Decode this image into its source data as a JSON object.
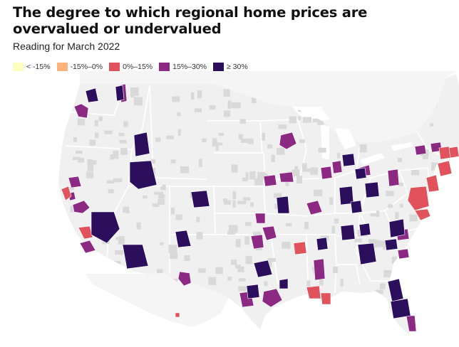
{
  "title": "The degree to which regional home prices are overvalued or undervalued",
  "subtitle": "Reading for March 2022",
  "legend": [
    {
      "label": "< -15%",
      "color": "#fcfdbf"
    },
    {
      "label": "-15%–0%",
      "color": "#fdb27c"
    },
    {
      "label": "0%–15%",
      "color": "#e2525c"
    },
    {
      "label": "15%–30%",
      "color": "#8c2982"
    },
    {
      "label": "≥ 30%",
      "color": "#2b0f5c"
    }
  ],
  "map": {
    "land_color": "#f0f0f0",
    "no_data_color": "#d9d9d9",
    "border_color": "#ffffff"
  }
}
